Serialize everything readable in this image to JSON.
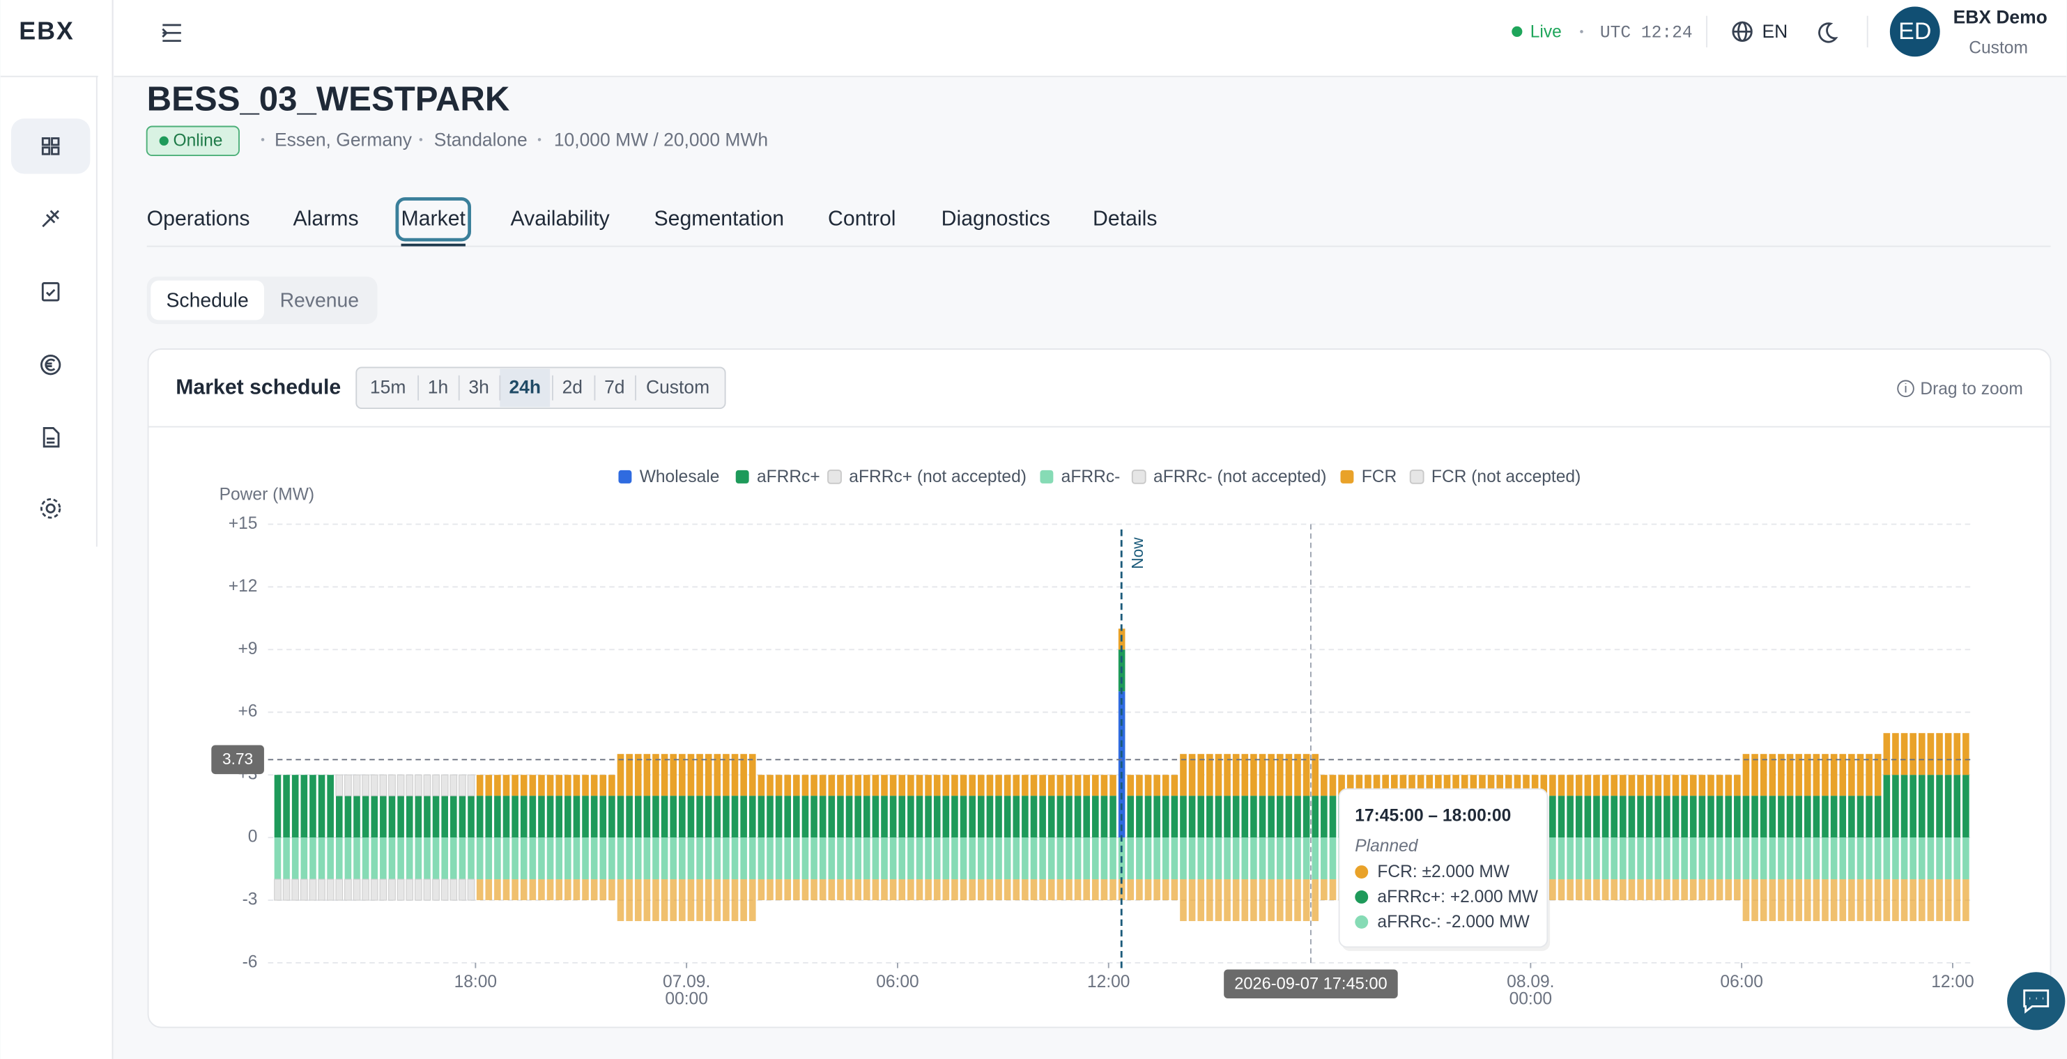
{
  "app": {
    "logo": "EBX",
    "status": "Live",
    "clock": "UTC 12:24",
    "language": "EN",
    "user": {
      "initials": "ED",
      "name": "EBX Demo",
      "role": "Custom"
    }
  },
  "asset": {
    "title": "BESS_03_WESTPARK",
    "badge": "Online",
    "location": "Essen, Germany",
    "mode": "Standalone",
    "capacity": "10,000 MW / 20,000 MWh"
  },
  "tabs": [
    "Operations",
    "Alarms",
    "Market",
    "Availability",
    "Segmentation",
    "Control",
    "Diagnostics",
    "Details"
  ],
  "active_tab": 2,
  "subtabs": [
    "Schedule",
    "Revenue"
  ],
  "active_subtab": 0,
  "card": {
    "title": "Market schedule",
    "ranges": [
      "15m",
      "1h",
      "3h",
      "24h",
      "2d",
      "7d",
      "Custom"
    ],
    "active_range": 3,
    "hint": "Drag to zoom"
  },
  "chart_data": {
    "type": "bar",
    "stacked": true,
    "y_label": "Power (MW)",
    "x": [
      "2026-09-06T12:15",
      "2026-09-06T14:00",
      "2026-09-06T18:00",
      "2026-09-06T22:00",
      "2026-09-07T02:00",
      "2026-09-07T12:15",
      "2026-09-07T12:30",
      "2026-09-07T14:00",
      "2026-09-07T18:00",
      "2026-09-08T06:00",
      "2026-09-08T10:00"
    ],
    "xlim": [
      "2026-09-06T12:15",
      "2026-09-08T12:30"
    ],
    "xticks": [
      {
        "value": "2026-09-06T18:00",
        "label": "18:00"
      },
      {
        "value": "2026-09-07T00:00",
        "label": [
          "07.09.",
          "00:00"
        ]
      },
      {
        "value": "2026-09-07T06:00",
        "label": "06:00"
      },
      {
        "value": "2026-09-07T12:00",
        "label": "12:00"
      },
      {
        "value": "2026-09-08T00:00",
        "label": [
          "08.09.",
          "00:00"
        ]
      },
      {
        "value": "2026-09-08T06:00",
        "label": "06:00"
      },
      {
        "value": "2026-09-08T12:00",
        "label": "12:00"
      }
    ],
    "ylim": [
      -6,
      15
    ],
    "yticks": [
      {
        "value": 15,
        "label": "+15"
      },
      {
        "value": 12,
        "label": "+12"
      },
      {
        "value": 9,
        "label": "+9"
      },
      {
        "value": 6,
        "label": "+6"
      },
      {
        "value": 3,
        "label": "+3"
      },
      0,
      -3,
      -6
    ],
    "grid": true,
    "series": [
      {
        "name": "Wholesale",
        "color": "#2f6be0",
        "values": [
          0,
          0,
          0,
          0,
          0,
          7,
          0,
          0,
          0,
          0,
          0
        ]
      },
      {
        "name": "aFRRc+",
        "color": "#1e9a5a",
        "values": [
          3,
          2,
          2,
          2,
          2,
          2,
          2,
          2,
          2,
          2,
          3
        ]
      },
      {
        "name": "aFRRc+ (not accepted)",
        "color": "#e6e6e6",
        "values": [
          0,
          1,
          0,
          0,
          0,
          0,
          0,
          0,
          0,
          0,
          0
        ]
      },
      {
        "name": "aFRRc-",
        "color": "#86dbb5",
        "values": [
          -2,
          -2,
          -2,
          -2,
          -2,
          -2,
          -2,
          -2,
          -2,
          -2,
          -2
        ]
      },
      {
        "name": "aFRRc- (not accepted)",
        "color": "#e6e6e6",
        "values": [
          -1,
          -1,
          0,
          0,
          0,
          0,
          0,
          0,
          0,
          0,
          0
        ]
      },
      {
        "name": "FCR",
        "color": "#e9a229",
        "symmetric": true,
        "values": [
          0,
          0,
          1,
          2,
          1,
          1,
          1,
          2,
          1,
          2,
          2
        ]
      },
      {
        "name": "FCR (not accepted)",
        "color": "#e6e6e6",
        "symmetric": true,
        "values": [
          0,
          0,
          0,
          0,
          0,
          0,
          0,
          0,
          0,
          0,
          0
        ]
      }
    ],
    "now": {
      "x": "2026-09-07T12:22",
      "label": "Now"
    },
    "hover": {
      "x": "2026-09-07T17:45",
      "label": "2026-09-07 17:45:00",
      "y": 3.73
    },
    "tooltip": {
      "title": "17:45:00 – 18:00:00",
      "status": "Planned",
      "items": [
        {
          "label": "FCR: ±2.000 MW",
          "color": "#e9a229"
        },
        {
          "label": "aFRRc+: +2.000 MW",
          "color": "#1e9a5a"
        },
        {
          "label": "aFRRc-: -2.000 MW",
          "color": "#86dbb5"
        }
      ]
    }
  }
}
